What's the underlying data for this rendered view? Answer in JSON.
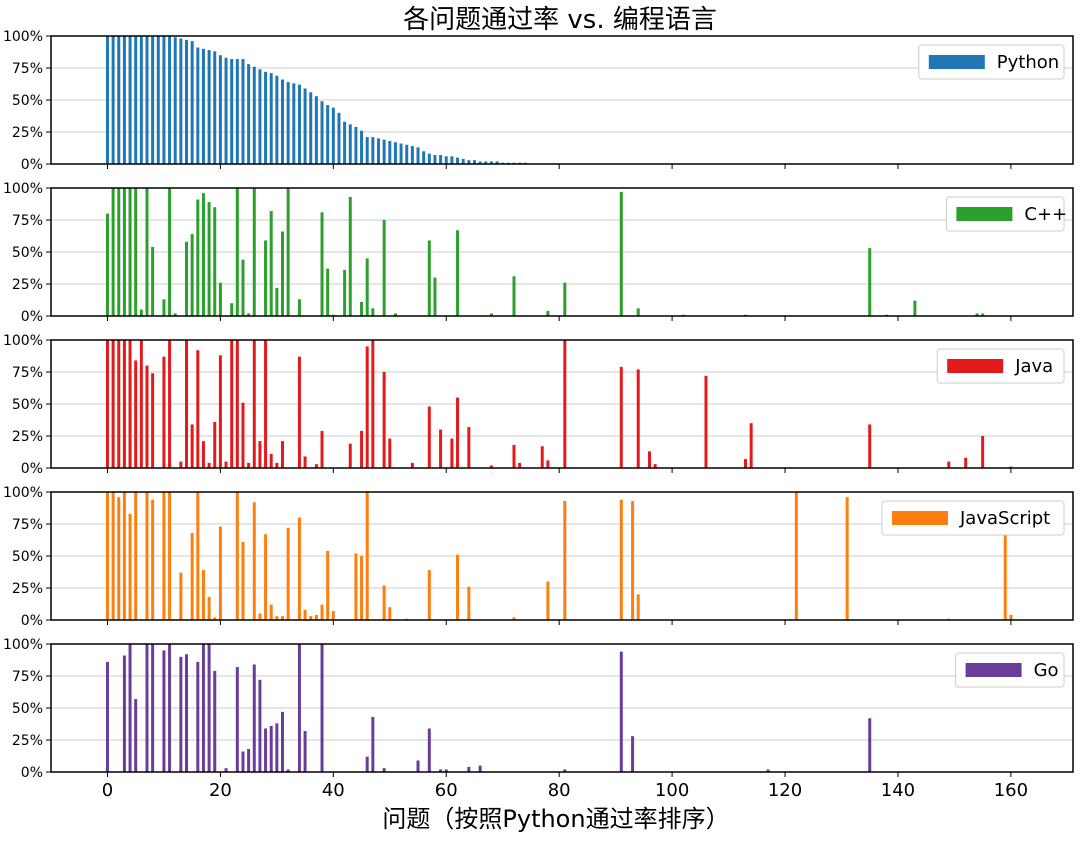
{
  "chart_data": {
    "type": "bar",
    "title": "各问题通过率 vs. 编程语言",
    "xlabel": "问题（按照Python通过率排序）",
    "xlim": [
      -10,
      171
    ],
    "xticks": [
      0,
      20,
      40,
      60,
      80,
      100,
      120,
      140,
      160
    ],
    "ylim": [
      0,
      1
    ],
    "yticks": [
      "0%",
      "25%",
      "50%",
      "75%",
      "100%"
    ],
    "grid": "horizontal",
    "legend_position": "top-right",
    "series": [
      {
        "name": "Python",
        "color": "#1f77b4",
        "values": [
          1,
          1,
          1,
          1,
          1,
          1,
          1,
          1,
          1,
          1,
          1,
          1,
          0.99,
          0.98,
          0.97,
          0.96,
          0.91,
          0.9,
          0.89,
          0.88,
          0.85,
          0.83,
          0.82,
          0.82,
          0.82,
          0.78,
          0.76,
          0.74,
          0.72,
          0.71,
          0.69,
          0.66,
          0.64,
          0.63,
          0.62,
          0.59,
          0.56,
          0.53,
          0.49,
          0.46,
          0.44,
          0.4,
          0.33,
          0.31,
          0.29,
          0.26,
          0.21,
          0.21,
          0.2,
          0.19,
          0.18,
          0.17,
          0.16,
          0.15,
          0.14,
          0.13,
          0.1,
          0.08,
          0.07,
          0.07,
          0.06,
          0.06,
          0.05,
          0.04,
          0.03,
          0.03,
          0.02,
          0.02,
          0.02,
          0.02,
          0.01,
          0.01,
          0.01,
          0.01,
          0.01,
          0.005,
          0.004,
          0.003,
          0.002,
          0.002,
          0.001,
          0.001,
          0.001,
          0.001,
          0.001
        ]
      },
      {
        "name": "C++",
        "color": "#2ca02c",
        "points": [
          [
            0,
            0.8
          ],
          [
            1,
            1.0
          ],
          [
            2,
            1.0
          ],
          [
            3,
            1.0
          ],
          [
            4,
            1.0
          ],
          [
            5,
            1.0
          ],
          [
            6,
            0.05
          ],
          [
            7,
            1.0
          ],
          [
            8,
            0.54
          ],
          [
            10,
            0.13
          ],
          [
            11,
            1.0
          ],
          [
            12,
            0.02
          ],
          [
            14,
            0.58
          ],
          [
            15,
            0.64
          ],
          [
            16,
            0.91
          ],
          [
            17,
            0.96
          ],
          [
            18,
            0.89
          ],
          [
            19,
            0.85
          ],
          [
            20,
            0.26
          ],
          [
            22,
            0.1
          ],
          [
            23,
            1.0
          ],
          [
            24,
            0.44
          ],
          [
            25,
            0.02
          ],
          [
            26,
            1.0
          ],
          [
            28,
            0.59
          ],
          [
            29,
            0.82
          ],
          [
            30,
            0.22
          ],
          [
            31,
            0.66
          ],
          [
            32,
            1.0
          ],
          [
            34,
            0.13
          ],
          [
            38,
            0.81
          ],
          [
            39,
            0.37
          ],
          [
            40,
            0.01
          ],
          [
            42,
            0.36
          ],
          [
            43,
            0.93
          ],
          [
            45,
            0.11
          ],
          [
            46,
            0.45
          ],
          [
            47,
            0.06
          ],
          [
            49,
            0.75
          ],
          [
            51,
            0.02
          ],
          [
            57,
            0.59
          ],
          [
            58,
            0.3
          ],
          [
            62,
            0.67
          ],
          [
            68,
            0.02
          ],
          [
            72,
            0.31
          ],
          [
            78,
            0.04
          ],
          [
            81,
            0.26
          ],
          [
            91,
            0.97
          ],
          [
            94,
            0.06
          ],
          [
            102,
            0.01
          ],
          [
            113,
            0.01
          ],
          [
            135,
            0.53
          ],
          [
            138,
            0.01
          ],
          [
            143,
            0.12
          ],
          [
            154,
            0.02
          ],
          [
            155,
            0.02
          ]
        ]
      },
      {
        "name": "Java",
        "color": "#e31a1c",
        "points": [
          [
            0,
            1.0
          ],
          [
            1,
            1.0
          ],
          [
            2,
            1.0
          ],
          [
            3,
            1.0
          ],
          [
            4,
            1.0
          ],
          [
            5,
            0.84
          ],
          [
            6,
            1.0
          ],
          [
            7,
            0.8
          ],
          [
            8,
            0.74
          ],
          [
            10,
            0.87
          ],
          [
            11,
            1.0
          ],
          [
            13,
            0.05
          ],
          [
            14,
            1.0
          ],
          [
            15,
            0.34
          ],
          [
            16,
            0.92
          ],
          [
            17,
            0.21
          ],
          [
            18,
            0.04
          ],
          [
            19,
            0.36
          ],
          [
            20,
            0.88
          ],
          [
            21,
            0.05
          ],
          [
            22,
            1.0
          ],
          [
            23,
            1.0
          ],
          [
            24,
            0.51
          ],
          [
            25,
            0.04
          ],
          [
            26,
            1.0
          ],
          [
            27,
            0.21
          ],
          [
            28,
            1.0
          ],
          [
            29,
            0.11
          ],
          [
            30,
            0.04
          ],
          [
            31,
            0.21
          ],
          [
            34,
            0.87
          ],
          [
            35,
            0.09
          ],
          [
            37,
            0.03
          ],
          [
            38,
            0.29
          ],
          [
            43,
            0.19
          ],
          [
            45,
            0.29
          ],
          [
            46,
            0.95
          ],
          [
            47,
            1.0
          ],
          [
            49,
            0.75
          ],
          [
            50,
            0.23
          ],
          [
            54,
            0.04
          ],
          [
            57,
            0.48
          ],
          [
            59,
            0.3
          ],
          [
            61,
            0.23
          ],
          [
            62,
            0.55
          ],
          [
            64,
            0.32
          ],
          [
            68,
            0.02
          ],
          [
            72,
            0.18
          ],
          [
            73,
            0.04
          ],
          [
            77,
            0.17
          ],
          [
            78,
            0.06
          ],
          [
            81,
            1.0
          ],
          [
            91,
            0.79
          ],
          [
            94,
            0.77
          ],
          [
            96,
            0.13
          ],
          [
            97,
            0.03
          ],
          [
            106,
            0.72
          ],
          [
            113,
            0.07
          ],
          [
            114,
            0.35
          ],
          [
            135,
            0.34
          ],
          [
            149,
            0.05
          ],
          [
            152,
            0.08
          ],
          [
            155,
            0.25
          ],
          [
            160,
            0.01
          ]
        ]
      },
      {
        "name": "JavaScript",
        "color": "#ff7f0e",
        "points": [
          [
            0,
            1.0
          ],
          [
            1,
            1.0
          ],
          [
            2,
            0.96
          ],
          [
            3,
            1.0
          ],
          [
            4,
            0.83
          ],
          [
            5,
            1.0
          ],
          [
            7,
            1.0
          ],
          [
            8,
            0.94
          ],
          [
            10,
            1.0
          ],
          [
            11,
            1.0
          ],
          [
            13,
            0.37
          ],
          [
            15,
            0.68
          ],
          [
            16,
            1.0
          ],
          [
            17,
            0.39
          ],
          [
            18,
            0.18
          ],
          [
            19,
            0.02
          ],
          [
            20,
            0.73
          ],
          [
            23,
            1.0
          ],
          [
            24,
            0.61
          ],
          [
            26,
            0.92
          ],
          [
            27,
            0.05
          ],
          [
            28,
            0.67
          ],
          [
            29,
            0.12
          ],
          [
            30,
            0.03
          ],
          [
            31,
            0.03
          ],
          [
            32,
            0.72
          ],
          [
            34,
            0.8
          ],
          [
            35,
            0.08
          ],
          [
            36,
            0.03
          ],
          [
            37,
            0.04
          ],
          [
            38,
            0.12
          ],
          [
            39,
            0.54
          ],
          [
            40,
            0.07
          ],
          [
            44,
            0.52
          ],
          [
            45,
            0.5
          ],
          [
            46,
            1.0
          ],
          [
            49,
            0.27
          ],
          [
            50,
            0.1
          ],
          [
            53,
            0.01
          ],
          [
            57,
            0.39
          ],
          [
            62,
            0.51
          ],
          [
            64,
            0.26
          ],
          [
            72,
            0.02
          ],
          [
            78,
            0.3
          ],
          [
            81,
            0.93
          ],
          [
            91,
            0.94
          ],
          [
            93,
            0.93
          ],
          [
            94,
            0.2
          ],
          [
            122,
            1.0
          ],
          [
            131,
            0.96
          ],
          [
            149,
            0.01
          ],
          [
            159,
            0.66
          ],
          [
            160,
            0.04
          ]
        ]
      },
      {
        "name": "Go",
        "color": "#6a3d9a",
        "points": [
          [
            0,
            0.86
          ],
          [
            3,
            0.91
          ],
          [
            4,
            1.0
          ],
          [
            5,
            0.57
          ],
          [
            7,
            1.0
          ],
          [
            8,
            1.0
          ],
          [
            10,
            0.95
          ],
          [
            11,
            1.0
          ],
          [
            13,
            0.9
          ],
          [
            14,
            0.92
          ],
          [
            16,
            0.86
          ],
          [
            17,
            1.0
          ],
          [
            18,
            1.0
          ],
          [
            19,
            0.79
          ],
          [
            21,
            0.03
          ],
          [
            23,
            0.82
          ],
          [
            24,
            0.16
          ],
          [
            25,
            0.18
          ],
          [
            26,
            0.84
          ],
          [
            27,
            0.72
          ],
          [
            28,
            0.34
          ],
          [
            29,
            0.36
          ],
          [
            30,
            0.38
          ],
          [
            31,
            0.47
          ],
          [
            32,
            0.02
          ],
          [
            34,
            1.0
          ],
          [
            35,
            0.32
          ],
          [
            38,
            1.0
          ],
          [
            46,
            0.12
          ],
          [
            47,
            0.43
          ],
          [
            49,
            0.03
          ],
          [
            55,
            0.09
          ],
          [
            57,
            0.34
          ],
          [
            59,
            0.02
          ],
          [
            60,
            0.02
          ],
          [
            64,
            0.04
          ],
          [
            66,
            0.05
          ],
          [
            81,
            0.02
          ],
          [
            91,
            0.94
          ],
          [
            93,
            0.28
          ],
          [
            117,
            0.02
          ],
          [
            135,
            0.42
          ]
        ]
      }
    ]
  }
}
